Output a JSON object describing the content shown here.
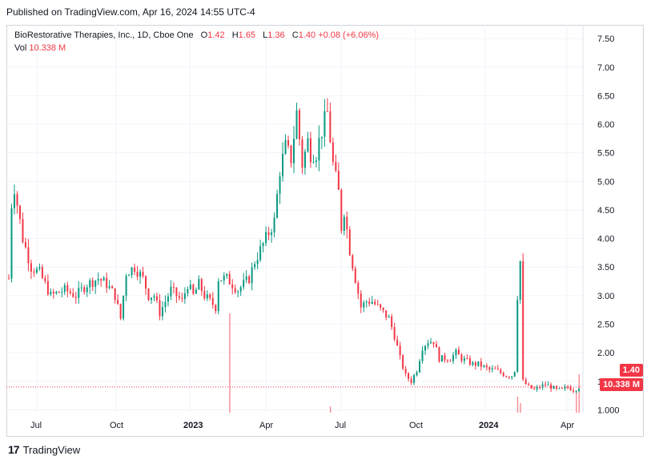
{
  "header": {
    "published": "Published on TradingView.com, Apr 16, 2024 14:55 UTC-4"
  },
  "legend": {
    "symbol": "BioRestorative Therapies, Inc., 1D, Cboe One",
    "open_label": "O",
    "open": "1.42",
    "high_label": "H",
    "high": "1.65",
    "low_label": "L",
    "low": "1.36",
    "close_label": "C",
    "close": "1.40",
    "change": "+0.08 (+6.06%)",
    "vol_label": "Vol",
    "vol": "10.338 M"
  },
  "badges": {
    "price": "1.40",
    "volume": "10.338 M"
  },
  "footer": {
    "brand": "TradingView"
  },
  "colors": {
    "up": "#089981",
    "down": "#f23645",
    "grid": "#f0f3fa",
    "text": "#131722"
  },
  "chart_data": {
    "type": "candlestick",
    "x_ticks": [
      "Jul",
      "Oct",
      "2023",
      "Apr",
      "Jul",
      "Oct",
      "2024",
      "Apr"
    ],
    "y_ticks": [
      "1.000",
      "1.50",
      "2.00",
      "2.50",
      "3.00",
      "3.50",
      "4.00",
      "4.50",
      "5.00",
      "5.50",
      "6.00",
      "6.50",
      "7.00",
      "7.50"
    ],
    "ylim": [
      0.95,
      7.6
    ],
    "last_close": 1.4,
    "last_volume": "10.338 M",
    "price_path": [
      [
        0,
        3.3
      ],
      [
        1,
        4.6
      ],
      [
        2,
        4.9
      ],
      [
        5,
        4.0
      ],
      [
        8,
        3.5
      ],
      [
        11,
        3.4
      ],
      [
        15,
        3.0
      ],
      [
        20,
        3.1
      ],
      [
        24,
        3.0
      ],
      [
        28,
        3.2
      ],
      [
        32,
        3.3
      ],
      [
        35,
        3.2
      ],
      [
        38,
        3.0
      ],
      [
        40,
        2.6
      ],
      [
        42,
        3.4
      ],
      [
        45,
        3.5
      ],
      [
        48,
        3.3
      ],
      [
        50,
        3.0
      ],
      [
        52,
        3.0
      ],
      [
        54,
        2.7
      ],
      [
        56,
        2.9
      ],
      [
        58,
        3.1
      ],
      [
        60,
        3.0
      ],
      [
        62,
        2.9
      ],
      [
        64,
        3.2
      ],
      [
        66,
        3.0
      ],
      [
        68,
        3.2
      ],
      [
        70,
        3.0
      ],
      [
        72,
        2.9
      ],
      [
        74,
        2.8
      ],
      [
        75,
        3.3
      ],
      [
        78,
        3.3
      ],
      [
        80,
        3.2
      ],
      [
        82,
        3.1
      ],
      [
        84,
        3.2
      ],
      [
        86,
        3.3
      ],
      [
        88,
        3.6
      ],
      [
        90,
        3.8
      ],
      [
        92,
        4.0
      ],
      [
        95,
        4.3
      ],
      [
        97,
        5.2
      ],
      [
        99,
        5.6
      ],
      [
        101,
        5.4
      ],
      [
        103,
        6.2
      ],
      [
        105,
        5.3
      ],
      [
        107,
        5.7
      ],
      [
        108,
        5.5
      ],
      [
        110,
        5.5
      ],
      [
        112,
        5.9
      ],
      [
        114,
        6.2
      ],
      [
        116,
        5.3
      ],
      [
        118,
        4.8
      ],
      [
        119,
        4.2
      ],
      [
        120,
        4.5
      ],
      [
        122,
        3.8
      ],
      [
        124,
        3.3
      ],
      [
        126,
        2.8
      ],
      [
        128,
        2.9
      ],
      [
        130,
        2.9
      ],
      [
        132,
        2.8
      ],
      [
        134,
        2.7
      ],
      [
        136,
        2.6
      ],
      [
        138,
        2.3
      ],
      [
        140,
        1.9
      ],
      [
        142,
        1.6
      ],
      [
        144,
        1.5
      ],
      [
        146,
        1.7
      ],
      [
        148,
        2.1
      ],
      [
        150,
        2.2
      ],
      [
        152,
        2.2
      ],
      [
        154,
        1.9
      ],
      [
        156,
        1.9
      ],
      [
        158,
        1.9
      ],
      [
        160,
        2.0
      ],
      [
        162,
        1.9
      ],
      [
        164,
        1.85
      ],
      [
        166,
        1.8
      ],
      [
        168,
        1.8
      ],
      [
        170,
        1.75
      ],
      [
        172,
        1.7
      ],
      [
        174,
        1.7
      ],
      [
        176,
        1.65
      ],
      [
        178,
        1.6
      ],
      [
        180,
        1.6
      ],
      [
        181,
        1.7
      ],
      [
        182,
        3.0
      ],
      [
        183,
        3.6
      ],
      [
        184,
        1.5
      ],
      [
        186,
        1.4
      ],
      [
        188,
        1.35
      ],
      [
        190,
        1.4
      ],
      [
        192,
        1.45
      ],
      [
        194,
        1.4
      ],
      [
        196,
        1.35
      ],
      [
        198,
        1.35
      ],
      [
        200,
        1.4
      ],
      [
        202,
        1.35
      ],
      [
        204,
        1.4
      ]
    ],
    "volume_spikes": [
      [
        79,
        0.31
      ],
      [
        115,
        0.02
      ],
      [
        182,
        0.05
      ],
      [
        183,
        0.03
      ],
      [
        203,
        0.07
      ],
      [
        204,
        0.12
      ]
    ]
  }
}
